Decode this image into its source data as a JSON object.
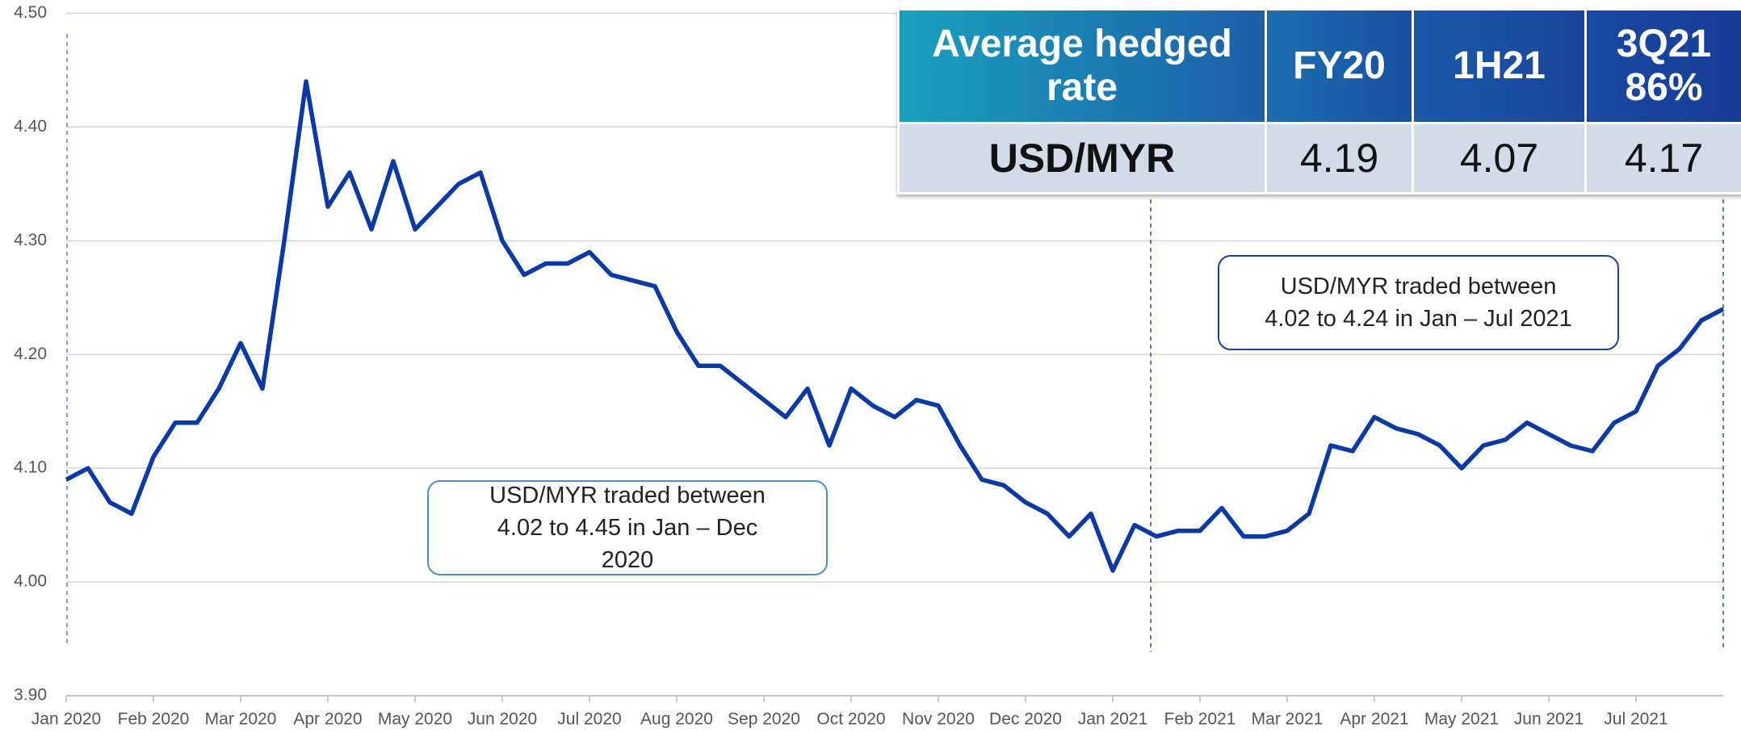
{
  "chart_data": {
    "type": "line",
    "categories": [
      "Jan 2020",
      null,
      null,
      null,
      "Feb 2020",
      null,
      null,
      null,
      "Mar 2020",
      null,
      null,
      null,
      "Apr 2020",
      null,
      null,
      null,
      "May 2020",
      null,
      null,
      null,
      "Jun 2020",
      null,
      null,
      null,
      "Jul 2020",
      null,
      null,
      null,
      "Aug 2020",
      null,
      null,
      null,
      "Sep 2020",
      null,
      null,
      null,
      "Oct 2020",
      null,
      null,
      null,
      "Nov 2020",
      null,
      null,
      null,
      "Dec 2020",
      null,
      null,
      null,
      "Jan 2021",
      null,
      null,
      null,
      "Feb 2021",
      null,
      null,
      null,
      "Mar 2021",
      null,
      null,
      null,
      "Apr 2021",
      null,
      null,
      null,
      "May 2021",
      null,
      null,
      null,
      "Jun 2021",
      null,
      null,
      null,
      "Jul 2021",
      null,
      null,
      null,
      null
    ],
    "series": [
      {
        "name": "USD/MYR",
        "color": "#0b3aa6",
        "values": [
          4.09,
          4.1,
          4.07,
          4.06,
          4.11,
          4.14,
          4.14,
          4.17,
          4.21,
          4.17,
          4.3,
          4.44,
          4.33,
          4.36,
          4.31,
          4.37,
          4.31,
          4.33,
          4.35,
          4.36,
          4.3,
          4.27,
          4.28,
          4.28,
          4.29,
          4.27,
          4.265,
          4.26,
          4.22,
          4.19,
          4.19,
          4.175,
          4.16,
          4.145,
          4.17,
          4.12,
          4.17,
          4.155,
          4.145,
          4.16,
          4.155,
          4.12,
          4.09,
          4.085,
          4.07,
          4.06,
          4.04,
          4.06,
          4.01,
          4.05,
          4.04,
          4.045,
          4.045,
          4.065,
          4.04,
          4.04,
          4.045,
          4.06,
          4.12,
          4.115,
          4.145,
          4.135,
          4.13,
          4.12,
          4.1,
          4.12,
          4.125,
          4.14,
          4.13,
          4.12,
          4.115,
          4.14,
          4.15,
          4.19,
          4.205,
          4.23,
          4.24
        ]
      }
    ],
    "ylim": [
      3.9,
      4.5
    ],
    "yticks": [
      {
        "value": 3.9,
        "label": "3.90"
      },
      {
        "value": 4.0,
        "label": "4.00"
      },
      {
        "value": 4.1,
        "label": "4.10"
      },
      {
        "value": 4.2,
        "label": "4.20"
      },
      {
        "value": 4.3,
        "label": "4.30"
      },
      {
        "value": 4.4,
        "label": "4.40"
      },
      {
        "value": 4.5,
        "label": "4.50"
      }
    ],
    "grid": true,
    "annotations": [
      "USD/MYR traded between 4.02 to 4.45 in Jan – Dec 2020",
      "USD/MYR traded between 4.02 to 4.24 in Jan – Jul 2021"
    ],
    "table": {
      "header": [
        "Average hedged rate",
        "FY20",
        "1H21",
        "3Q21 86%"
      ],
      "row": [
        "USD/MYR",
        "4.19",
        "4.07",
        "4.17"
      ]
    }
  }
}
